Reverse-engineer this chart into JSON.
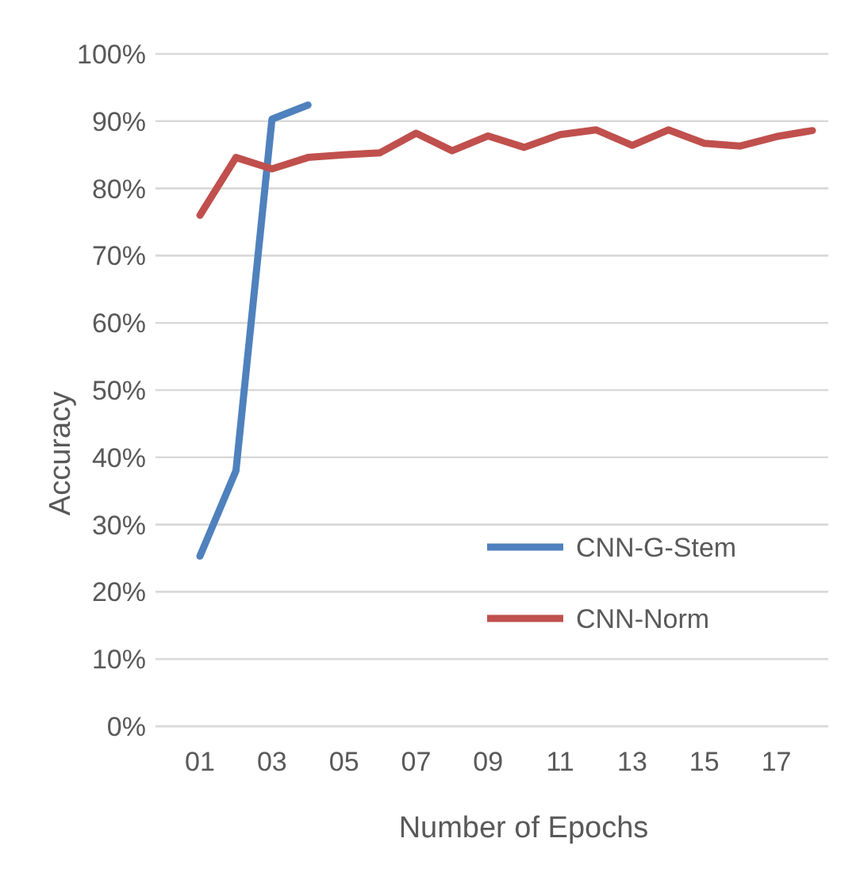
{
  "chart_data": {
    "type": "line",
    "xlabel": "Number of Epochs",
    "ylabel": "Accuracy",
    "categories": [
      "01",
      null,
      "03",
      null,
      "05",
      null,
      "07",
      null,
      "09",
      null,
      "11",
      null,
      "13",
      null,
      "15",
      null,
      "17",
      null
    ],
    "series": [
      {
        "name": "CNN-G-Stem",
        "color": "#4f81bd",
        "values": [
          25.3,
          38,
          90.3,
          92.4,
          null,
          null,
          null,
          null,
          null,
          null,
          null,
          null,
          null,
          null,
          null,
          null,
          null,
          null
        ]
      },
      {
        "name": "CNN-Norm",
        "color": "#c0504d",
        "values": [
          76,
          84.6,
          82.9,
          84.6,
          85,
          85.3,
          88.2,
          85.6,
          87.8,
          86.1,
          88,
          88.7,
          86.4,
          88.7,
          86.7,
          86.3,
          87.7,
          88.6
        ]
      }
    ],
    "ylim": [
      0,
      100
    ],
    "yticks": [
      {
        "value": 0,
        "label": "0%"
      },
      {
        "value": 10,
        "label": "10%"
      },
      {
        "value": 20,
        "label": "20%"
      },
      {
        "value": 30,
        "label": "30%"
      },
      {
        "value": 40,
        "label": "40%"
      },
      {
        "value": 50,
        "label": "50%"
      },
      {
        "value": 60,
        "label": "60%"
      },
      {
        "value": 70,
        "label": "70%"
      },
      {
        "value": 80,
        "label": "80%"
      },
      {
        "value": 90,
        "label": "90%"
      },
      {
        "value": 100,
        "label": "100%"
      }
    ],
    "grid": "y",
    "legend": "bottom right",
    "marker": "none",
    "line_style": "solid"
  }
}
